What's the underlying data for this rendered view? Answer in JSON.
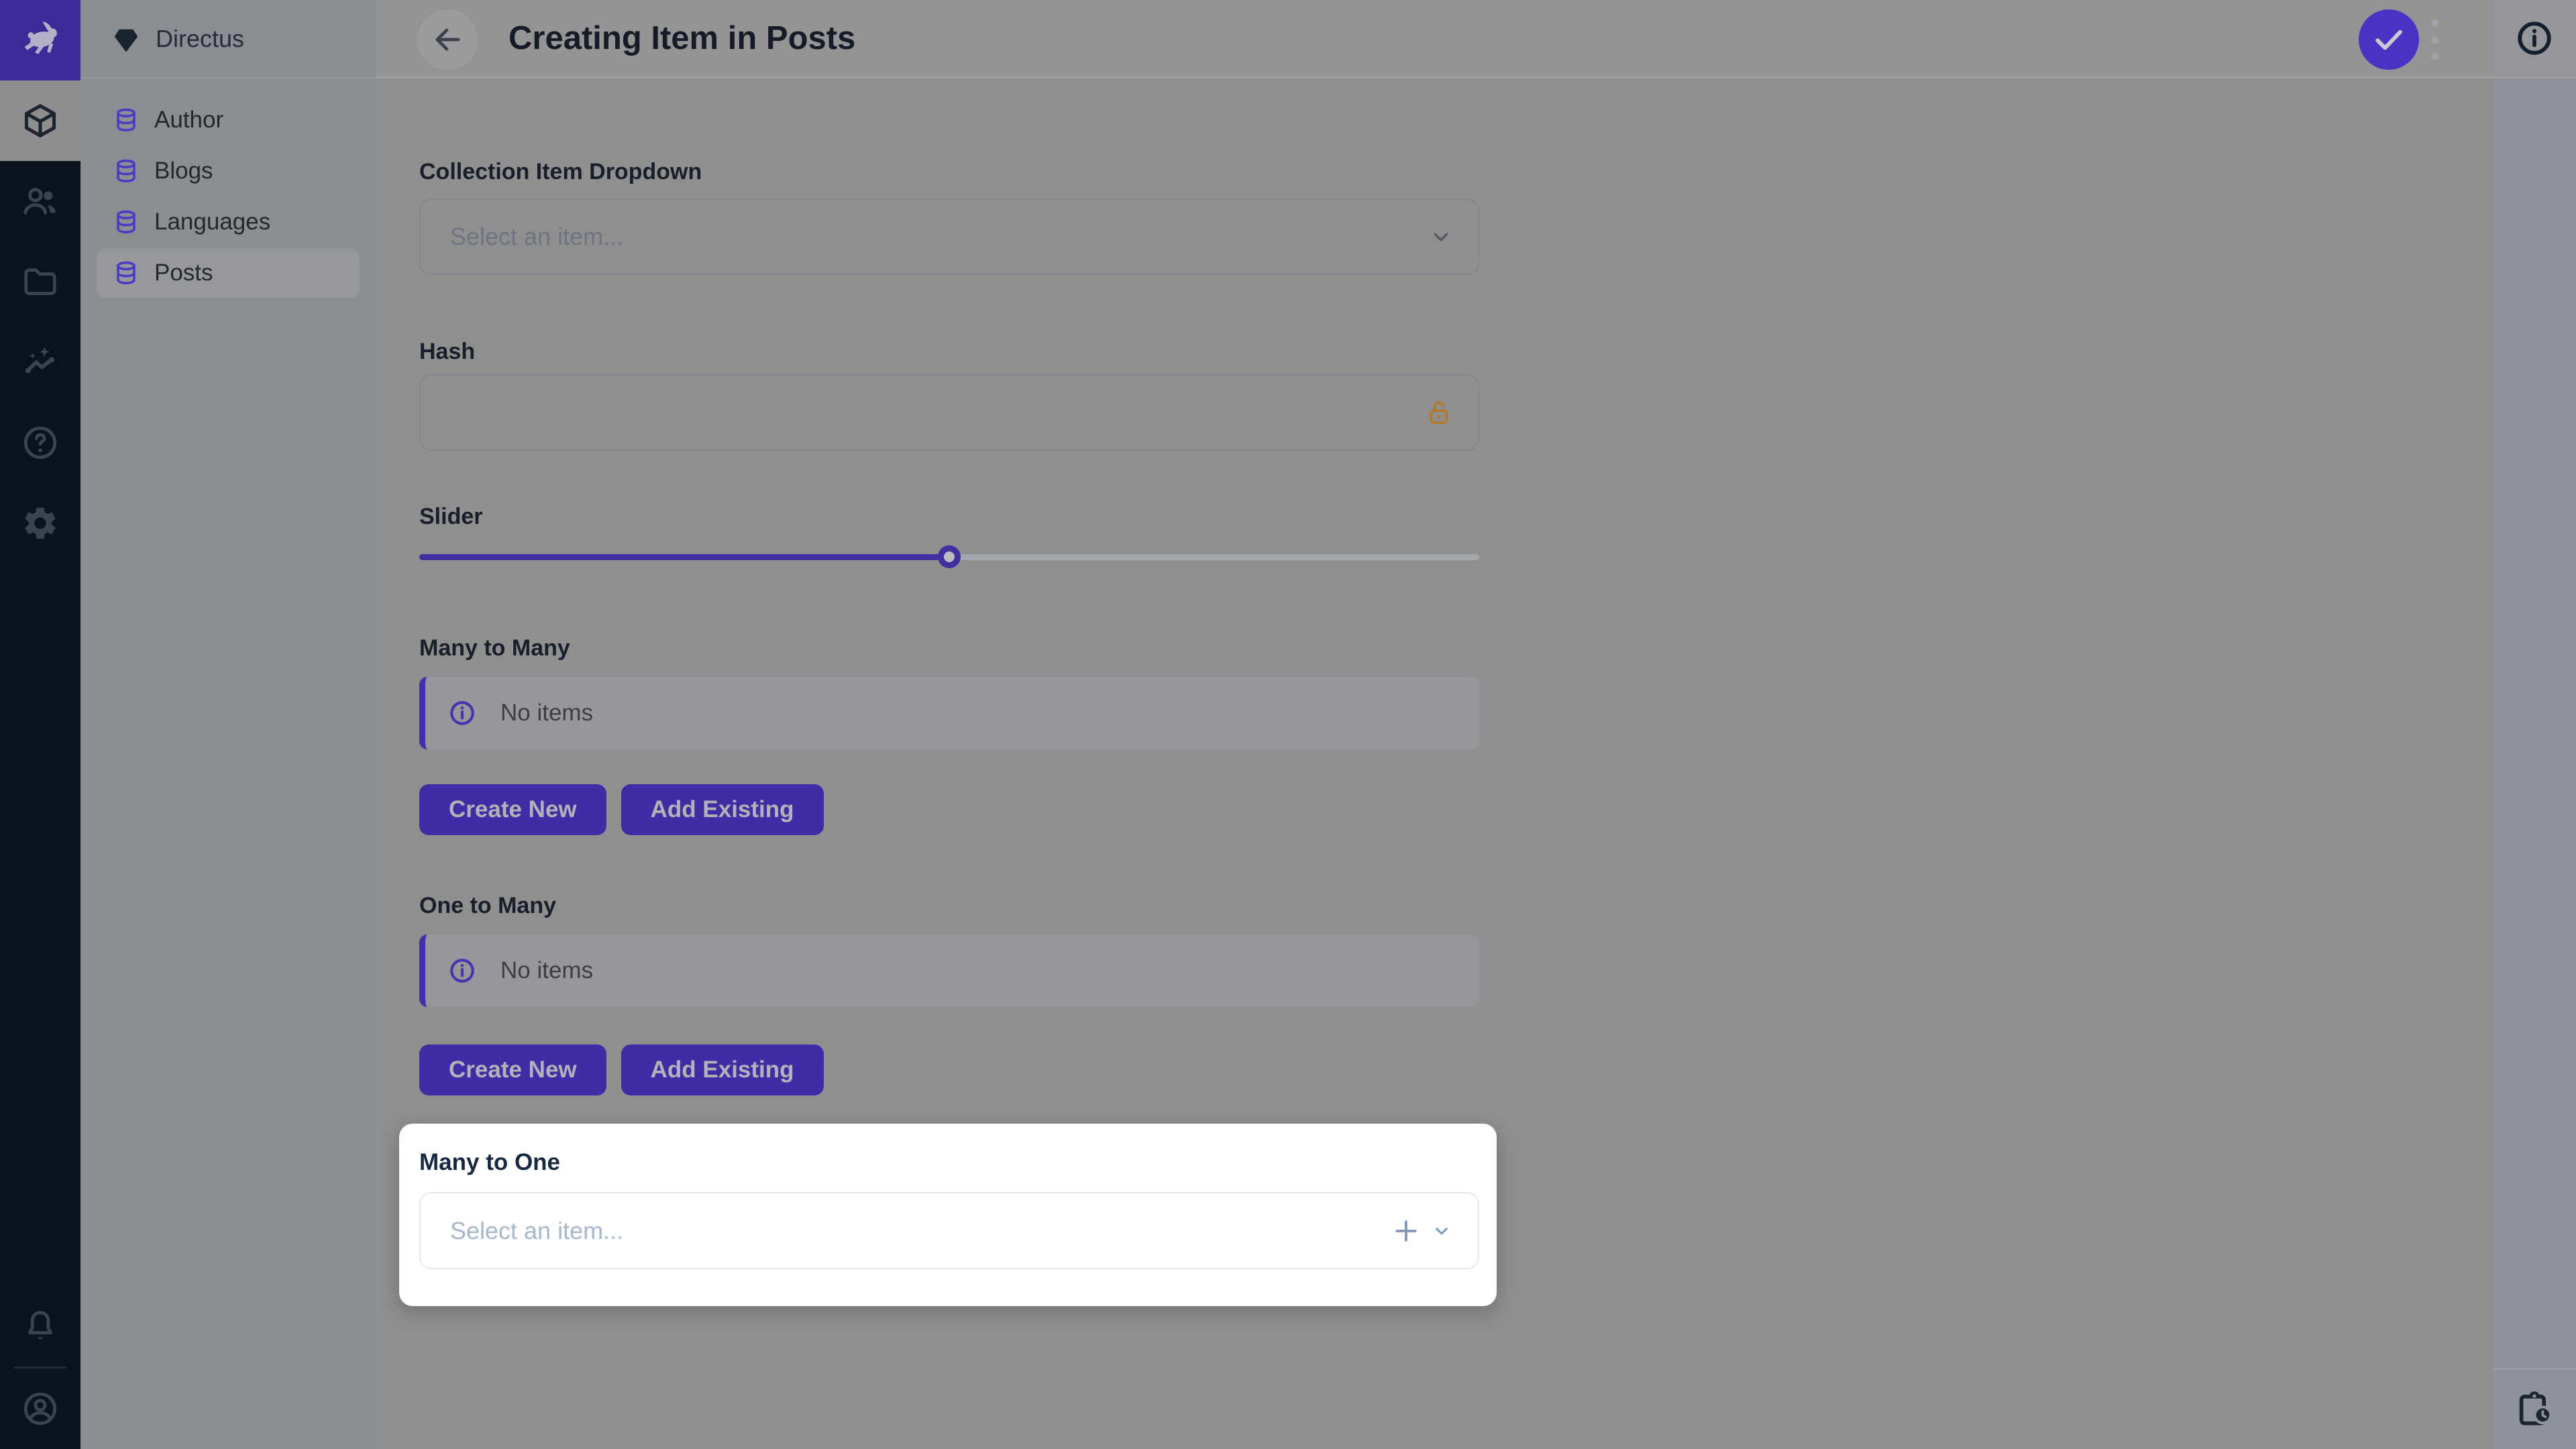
{
  "app": {
    "project_name": "Directus"
  },
  "colors": {
    "accent": "#6644FF",
    "accent_dimmed": "#4330AE",
    "module_bar_bg": "#0B121D",
    "lock_warning": "#B27B35",
    "spotlight_bg": "#FFFFFF"
  },
  "module_bar": {
    "modules": [
      {
        "name": "content",
        "icon": "cube-icon",
        "active": true
      },
      {
        "name": "users",
        "icon": "users-icon"
      },
      {
        "name": "files",
        "icon": "folder-icon"
      },
      {
        "name": "insights",
        "icon": "insights-icon"
      },
      {
        "name": "help",
        "icon": "help-icon"
      },
      {
        "name": "settings",
        "icon": "gear-icon"
      }
    ],
    "bottom": [
      {
        "name": "notifications",
        "icon": "bell-icon"
      },
      {
        "name": "account",
        "icon": "avatar-icon"
      }
    ]
  },
  "sidebar": {
    "items": [
      {
        "label": "Author"
      },
      {
        "label": "Blogs"
      },
      {
        "label": "Languages"
      },
      {
        "label": "Posts",
        "active": true
      }
    ]
  },
  "header": {
    "title": "Creating Item in Posts"
  },
  "form": {
    "collection_item_dropdown": {
      "label": "Collection Item Dropdown",
      "placeholder": "Select an item..."
    },
    "hash": {
      "label": "Hash",
      "value": ""
    },
    "slider": {
      "label": "Slider",
      "percent": 50
    },
    "many_to_many": {
      "label": "Many to Many",
      "empty_text": "No items",
      "create_label": "Create New",
      "add_label": "Add Existing"
    },
    "one_to_many": {
      "label": "One to Many",
      "empty_text": "No items",
      "create_label": "Create New",
      "add_label": "Add Existing"
    },
    "many_to_one": {
      "label": "Many to One",
      "placeholder": "Select an item..."
    }
  },
  "right_sidebar": {
    "top_icon": "info-icon",
    "bottom_icon": "revisions-clipboard-clock-icon"
  }
}
